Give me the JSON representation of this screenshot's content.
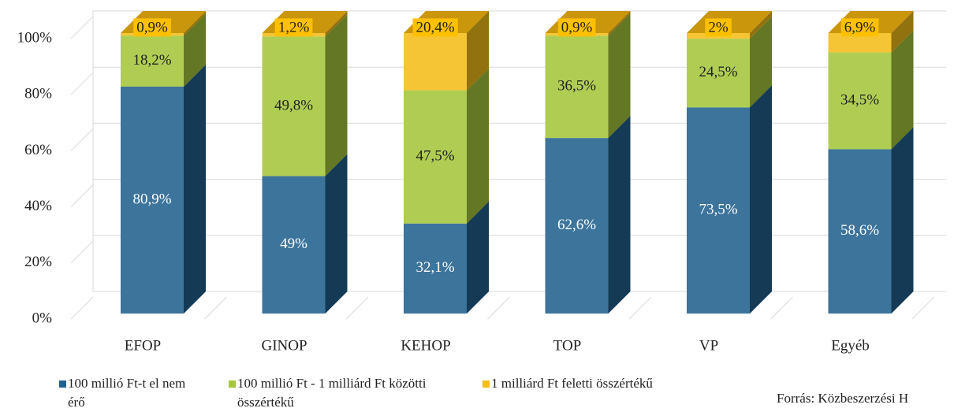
{
  "chart_data": {
    "type": "bar3d_stacked",
    "categories": [
      "EFOP",
      "GINOP",
      "KEHOP",
      "TOP",
      "VP",
      "Egyéb"
    ],
    "series": [
      {
        "name": "100 millió Ft-t el nem érő",
        "color": "#22618f",
        "values": [
          80.9,
          49,
          32.1,
          62.6,
          73.5,
          58.6
        ],
        "value_labels": [
          "80,9%",
          "49%",
          "32,1%",
          "62,6%",
          "73,5%",
          "58,6%"
        ]
      },
      {
        "name": "100 millió Ft - 1 milliárd Ft közötti összértékű",
        "color": "#a6c63c",
        "values": [
          18.2,
          49.8,
          47.5,
          36.5,
          24.5,
          34.5
        ],
        "value_labels": [
          "18,2%",
          "49,8%",
          "47,5%",
          "36,5%",
          "24,5%",
          "34,5%"
        ]
      },
      {
        "name": "1 milliárd Ft feletti összértékű",
        "color": "#f4bd1a",
        "values": [
          0.9,
          1.2,
          20.4,
          0.9,
          2,
          6.9
        ],
        "value_labels": [
          "0,9%",
          "1,2%",
          "20,4%",
          "0,9%",
          "2%",
          "6,9%"
        ]
      }
    ],
    "ylim": [
      0,
      100
    ],
    "yticks": [
      {
        "value": 0,
        "label": "0%"
      },
      {
        "value": 20,
        "label": "20%"
      },
      {
        "value": 40,
        "label": "40%"
      },
      {
        "value": 60,
        "label": "60%"
      },
      {
        "value": 80,
        "label": "80%"
      },
      {
        "value": 100,
        "label": "100%"
      }
    ],
    "grid": true,
    "source": "Forrás: Közbeszerzési H"
  }
}
